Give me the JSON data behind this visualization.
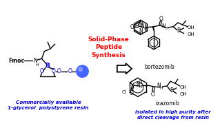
{
  "title": "Solid-Phase\nPeptide\nSynthesis",
  "title_color": "#ff0000",
  "left_label_line1": "Commercially available",
  "left_label_line2": "1-glycerol  polystyrene resin",
  "left_label_color": "#0000ee",
  "right_label_line1": "Isolated in high purity after",
  "right_label_line2": "direct cleavage from resin",
  "right_label_color": "#0000ee",
  "product1": "bortezomib",
  "product2": "ixazomib",
  "bg_color": "#ffffff",
  "black": "#000000",
  "blue": "#0000ee",
  "resin_color": "#5577ff"
}
